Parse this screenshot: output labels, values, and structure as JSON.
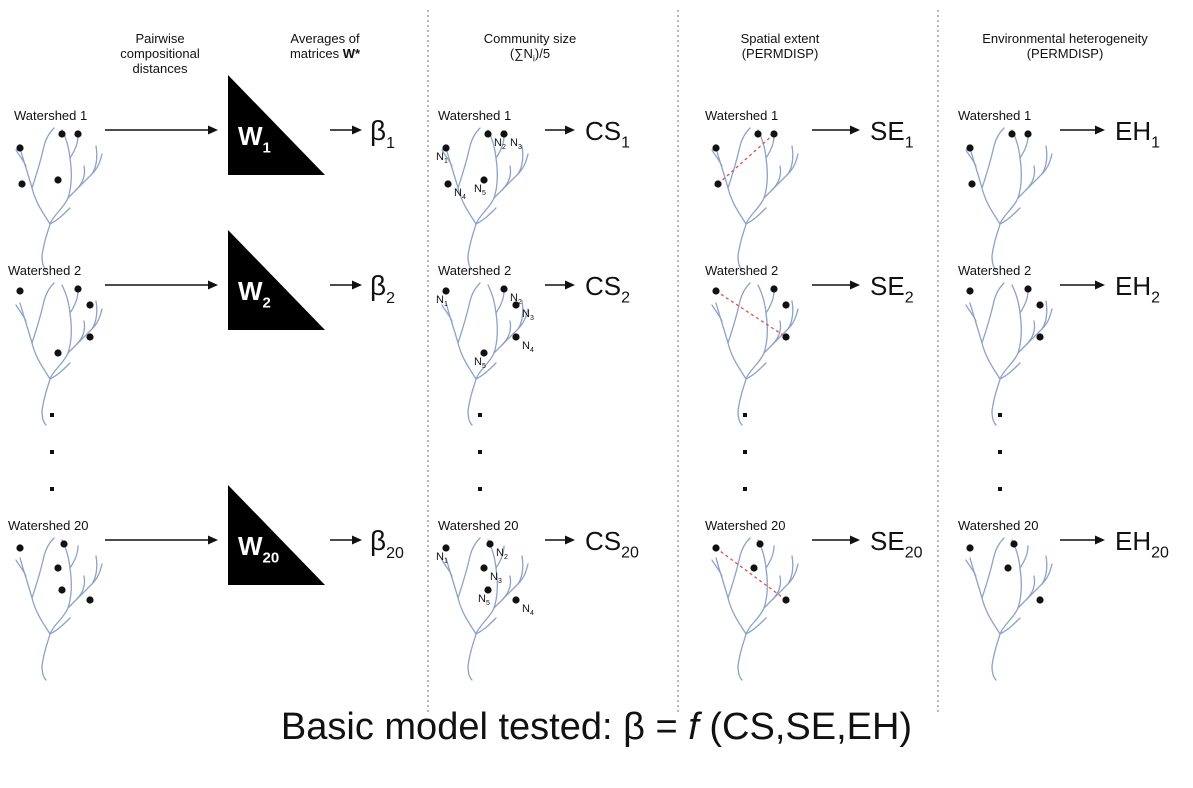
{
  "headers": {
    "pairwise": "Pairwise\ncompositional\ndistances",
    "averages_prefix": "Averages of\nmatrices ",
    "averages_bold": "W*",
    "community": "Community size\n(∑N",
    "community_sub": "i",
    "community_suffix": ")/5",
    "spatial": "Spatial extent\n(PERMDISP)",
    "environmental": "Environmental heterogeneity\n(PERMDISP)"
  },
  "rows": [
    {
      "label": "Watershed 1",
      "w_sub": "1",
      "beta_sub": "1",
      "cs_sub": "1",
      "se_sub": "1",
      "eh_sub": "1"
    },
    {
      "label": "Watershed 2",
      "w_sub": "2",
      "beta_sub": "2",
      "cs_sub": "2",
      "se_sub": "2",
      "eh_sub": "2"
    },
    {
      "label": "Watershed 20",
      "w_sub": "20",
      "beta_sub": "20",
      "cs_sub": "20",
      "se_sub": "20",
      "eh_sub": "20"
    }
  ],
  "symbols": {
    "w": "W",
    "beta": "β",
    "cs": "CS",
    "se": "SE",
    "eh": "EH",
    "n": "N"
  },
  "node_subs": [
    "1",
    "2",
    "3",
    "4",
    "5"
  ],
  "footer": {
    "prefix": "Basic model tested: β = ",
    "f": "f",
    "suffix": " (CS,SE,EH)"
  },
  "colors": {
    "river": "#8ea2c8",
    "dashed": "#e05050",
    "ink": "#111111"
  }
}
